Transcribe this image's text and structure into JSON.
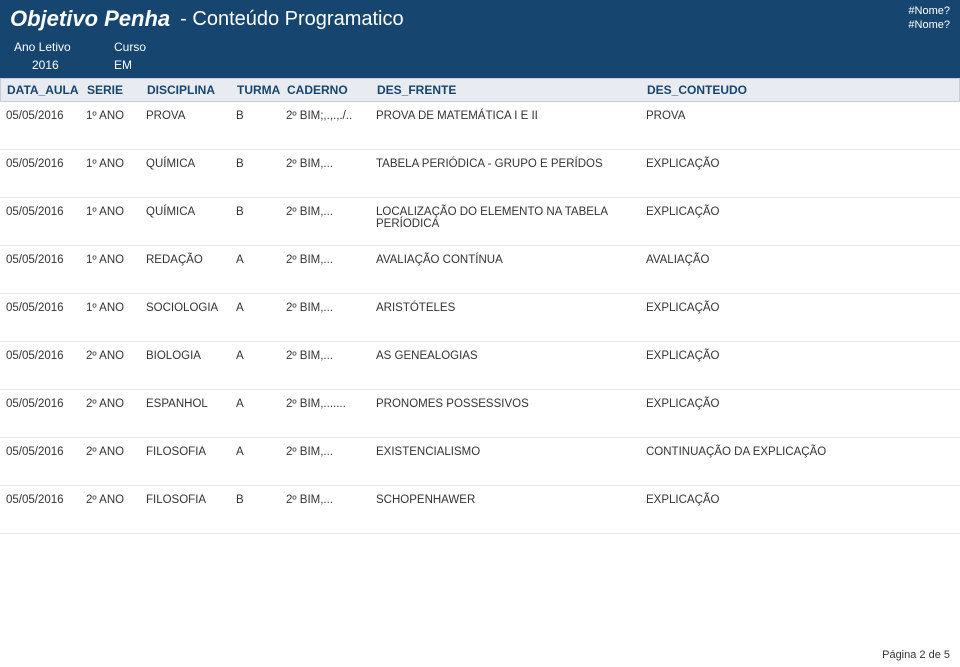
{
  "header": {
    "title_main": "Objetivo Penha",
    "title_sub": "- Conteúdo Programatico",
    "corner1": "#Nome?",
    "corner2": "#Nome?"
  },
  "meta": {
    "label_ano": "Ano Letivo",
    "label_curso": "Curso",
    "val_ano": "2016",
    "val_curso": "EM"
  },
  "columns": {
    "date": "DATA_AULA",
    "serie": "SERIE",
    "disc": "DISCIPLINA",
    "turma": "TURMA",
    "cad": "CADERNO",
    "frente": "DES_FRENTE",
    "cont": "DES_CONTEUDO"
  },
  "rows": [
    {
      "date": "05/05/2016",
      "serie": "1º ANO",
      "disc": "PROVA",
      "turma": "B",
      "cad": "2º BIM;,.,.,./..",
      "frente": "PROVA DE MATEMÁTICA I E II",
      "cont": "PROVA"
    },
    {
      "date": "05/05/2016",
      "serie": "1º ANO",
      "disc": "QUÍMICA",
      "turma": "B",
      "cad": "2º BIM,...",
      "frente": "TABELA PERIÓDICA - GRUPO E PERÍDOS",
      "cont": "EXPLICAÇÃO"
    },
    {
      "date": "05/05/2016",
      "serie": "1º ANO",
      "disc": "QUÍMICA",
      "turma": "B",
      "cad": "2º BIM,...",
      "frente": "LOCALIZAÇÃO DO ELEMENTO NA TABELA PERÍODICA",
      "cont": "EXPLICAÇÃO"
    },
    {
      "date": "05/05/2016",
      "serie": "1º ANO",
      "disc": "REDAÇÃO",
      "turma": "A",
      "cad": "2º BIM,...",
      "frente": "AVALIAÇÃO CONTÍNUA",
      "cont": "AVALIAÇÃO"
    },
    {
      "date": "05/05/2016",
      "serie": "1º ANO",
      "disc": "SOCIOLOGIA",
      "turma": "A",
      "cad": "2º BIM,...",
      "frente": "ARISTÓTELES",
      "cont": "EXPLICAÇÃO"
    },
    {
      "date": "05/05/2016",
      "serie": "2º ANO",
      "disc": "BIOLOGIA",
      "turma": "A",
      "cad": "2º BIM,...",
      "frente": "AS GENEALOGIAS",
      "cont": "EXPLICAÇÃO"
    },
    {
      "date": "05/05/2016",
      "serie": "2º ANO",
      "disc": "ESPANHOL",
      "turma": "A",
      "cad": "2º BIM,.......",
      "frente": "PRONOMES POSSESSIVOS",
      "cont": "EXPLICAÇÃO"
    },
    {
      "date": "05/05/2016",
      "serie": "2º ANO",
      "disc": "FILOSOFIA",
      "turma": "A",
      "cad": "2º BIM,...",
      "frente": "EXISTENCIALISMO",
      "cont": "CONTINUAÇÃO DA EXPLICAÇÃO"
    },
    {
      "date": "05/05/2016",
      "serie": "2º ANO",
      "disc": "FILOSOFIA",
      "turma": "B",
      "cad": "2º BIM,...",
      "frente": "SCHOPENHAWER",
      "cont": "EXPLICAÇÃO"
    }
  ],
  "footer": {
    "page": "Página 2 de 5"
  },
  "colors": {
    "header_bg": "#164570",
    "header_fg": "#ffffff",
    "thead_bg": "#e8ecf0",
    "thead_border": "#c8cdd3",
    "row_border": "#e8e8e8",
    "text": "#333333"
  }
}
